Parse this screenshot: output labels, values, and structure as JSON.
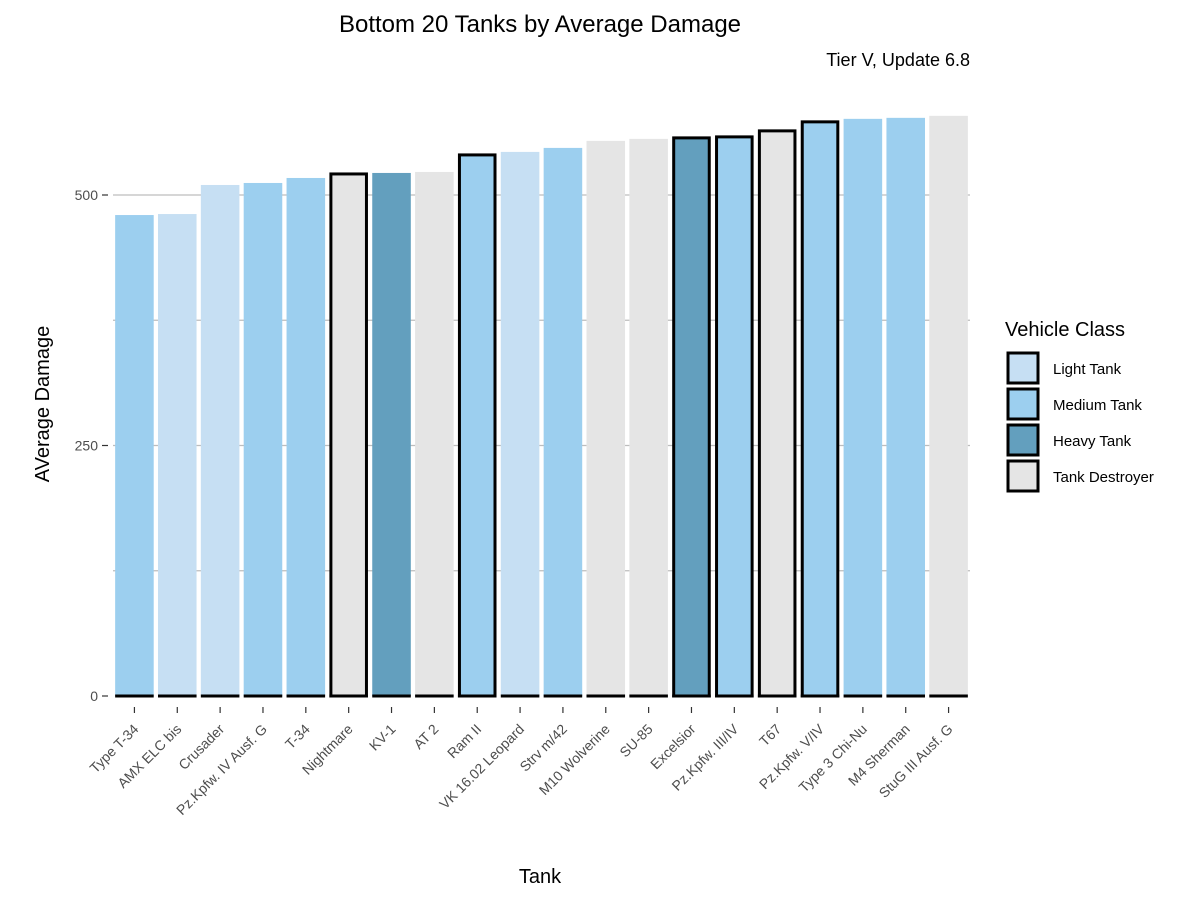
{
  "chart_data": {
    "type": "bar",
    "title": "Bottom 20 Tanks by Average Damage",
    "subtitle": "Tier V, Update 6.8",
    "xlabel": "Tank",
    "ylabel": "AVerage Damage",
    "ylim": [
      0,
      580
    ],
    "yticks": [
      0,
      250,
      500
    ],
    "grid": "horizontal",
    "legend_position": "right",
    "legend_title": "Vehicle Class",
    "classes": [
      {
        "name": "Light Tank",
        "color": "#c6dff3"
      },
      {
        "name": "Medium Tank",
        "color": "#9ccfef"
      },
      {
        "name": "Heavy Tank",
        "color": "#639fbe"
      },
      {
        "name": "Tank Destroyer",
        "color": "#e5e5e5"
      }
    ],
    "bars": [
      {
        "tank": "Type T-34",
        "value": 480,
        "class": "Medium Tank",
        "outlined": false
      },
      {
        "tank": "AMX ELC bis",
        "value": 481,
        "class": "Light Tank",
        "outlined": false
      },
      {
        "tank": "Crusader",
        "value": 510,
        "class": "Light Tank",
        "outlined": false
      },
      {
        "tank": "Pz.Kpfw. IV Ausf. G",
        "value": 512,
        "class": "Medium Tank",
        "outlined": false
      },
      {
        "tank": "T-34",
        "value": 517,
        "class": "Medium Tank",
        "outlined": false
      },
      {
        "tank": "Nightmare",
        "value": 521,
        "class": "Tank Destroyer",
        "outlined": true
      },
      {
        "tank": "KV-1",
        "value": 522,
        "class": "Heavy Tank",
        "outlined": false
      },
      {
        "tank": "AT 2",
        "value": 523,
        "class": "Tank Destroyer",
        "outlined": false
      },
      {
        "tank": "Ram II",
        "value": 540,
        "class": "Medium Tank",
        "outlined": true
      },
      {
        "tank": "VK 16.02 Leopard",
        "value": 543,
        "class": "Light Tank",
        "outlined": false
      },
      {
        "tank": "Strv m/42",
        "value": 547,
        "class": "Medium Tank",
        "outlined": false
      },
      {
        "tank": "M10 Wolverine",
        "value": 554,
        "class": "Tank Destroyer",
        "outlined": false
      },
      {
        "tank": "SU-85",
        "value": 556,
        "class": "Tank Destroyer",
        "outlined": false
      },
      {
        "tank": "Excelsior",
        "value": 557,
        "class": "Heavy Tank",
        "outlined": true
      },
      {
        "tank": "Pz.Kpfw. III/IV",
        "value": 558,
        "class": "Medium Tank",
        "outlined": true
      },
      {
        "tank": "T67",
        "value": 564,
        "class": "Tank Destroyer",
        "outlined": true
      },
      {
        "tank": "Pz.Kpfw. V/IV",
        "value": 573,
        "class": "Medium Tank",
        "outlined": true
      },
      {
        "tank": "Type 3 Chi-Nu",
        "value": 576,
        "class": "Medium Tank",
        "outlined": false
      },
      {
        "tank": "M4 Sherman",
        "value": 577,
        "class": "Medium Tank",
        "outlined": false
      },
      {
        "tank": "StuG III Ausf. G",
        "value": 579,
        "class": "Tank Destroyer",
        "outlined": false
      }
    ]
  }
}
